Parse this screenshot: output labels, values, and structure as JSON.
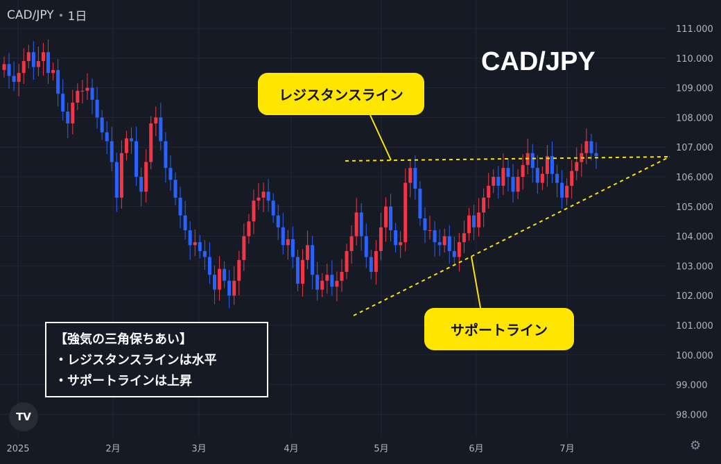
{
  "header": {
    "symbol": "CAD/JPY",
    "interval": "1日"
  },
  "overlay": {
    "title": "CAD/JPY",
    "resistance_label": "レジスタンスライン",
    "support_label": "サポートライン",
    "info_lines": [
      "【強気の三角保ちあい】",
      "・レジスタンスラインは水平",
      "・サポートラインは上昇"
    ]
  },
  "icons": {
    "logo": "tradingview-logo-icon",
    "settings": "gear-icon"
  },
  "colors": {
    "background": "#161a25",
    "up": "#f23645",
    "down": "#2962ff",
    "annotation": "#ffe600"
  },
  "chart_data": {
    "type": "candlestick",
    "title": "CAD/JPY",
    "ylim": [
      97.5,
      111.3
    ],
    "yticks": [
      "111.000",
      "110.000",
      "109.000",
      "108.000",
      "107.000",
      "106.000",
      "105.000",
      "104.000",
      "103.000",
      "102.000",
      "101.000",
      "100.000",
      "99.000",
      "98.000"
    ],
    "xticks": [
      "2025",
      "2月",
      "3月",
      "4月",
      "5月",
      "6月",
      "7月"
    ],
    "series": [
      {
        "open": [
          109.6,
          109.8,
          109.4,
          109.2,
          109.5,
          109.9,
          110.2,
          109.7,
          109.9,
          110.2,
          109.5,
          109.6,
          108.8,
          108.2,
          107.8,
          108.5,
          108.9,
          108.9,
          109.0,
          108.6,
          108.0,
          107.5,
          107.2,
          106.5,
          105.3,
          106.8,
          107.3,
          107.2,
          106.0,
          105.5,
          106.5,
          107.8,
          108.0,
          107.2,
          106.3,
          105.9,
          105.3,
          104.7,
          104.2,
          103.7,
          103.8,
          103.5,
          103.3,
          102.7,
          102.2,
          102.9,
          102.5,
          102.0,
          102.5,
          103.2,
          104.0,
          104.5,
          105.2,
          105.3,
          105.5,
          105.2,
          104.7,
          104.3,
          103.7,
          103.9,
          103.3,
          102.4,
          103.2,
          103.7,
          102.7,
          102.2,
          102.5,
          102.7,
          102.3,
          102.5,
          102.8,
          103.5,
          104.0,
          104.8,
          104.0,
          103.3,
          102.8,
          103.5,
          104.3,
          105.0,
          104.2,
          103.7,
          103.8,
          105.8,
          106.3,
          105.6,
          104.6,
          104.2,
          104.2,
          103.8,
          103.7,
          104.0,
          103.5,
          103.3,
          103.8,
          104.1,
          104.7,
          104.3,
          104.8,
          105.3,
          105.7,
          106.0,
          105.7,
          106.3,
          106.0,
          105.5,
          106.0,
          106.4,
          106.8,
          106.3,
          105.8,
          106.1,
          106.7,
          106.1,
          105.8,
          105.3,
          105.7,
          106.2,
          106.5,
          106.8,
          107.2,
          106.8
        ],
        "close": [
          109.8,
          109.4,
          109.2,
          109.5,
          109.9,
          110.2,
          109.7,
          109.9,
          110.2,
          109.5,
          109.6,
          108.8,
          108.2,
          107.8,
          108.5,
          108.9,
          108.9,
          109.0,
          108.6,
          108.0,
          107.5,
          107.2,
          106.5,
          105.3,
          106.8,
          107.3,
          107.2,
          106.0,
          105.5,
          106.5,
          107.8,
          108.0,
          107.2,
          106.3,
          105.9,
          105.3,
          104.7,
          104.2,
          103.7,
          103.8,
          103.5,
          103.3,
          102.7,
          102.2,
          102.9,
          102.5,
          102.0,
          102.5,
          103.2,
          104.0,
          104.5,
          105.2,
          105.3,
          105.5,
          105.2,
          104.7,
          104.3,
          103.7,
          103.9,
          103.3,
          102.4,
          103.2,
          103.7,
          102.7,
          102.2,
          102.5,
          102.7,
          102.3,
          102.5,
          102.8,
          103.5,
          104.0,
          104.8,
          104.0,
          103.3,
          102.8,
          103.5,
          104.3,
          105.0,
          104.2,
          103.7,
          103.8,
          105.8,
          106.3,
          105.6,
          104.6,
          104.2,
          104.2,
          103.8,
          103.7,
          104.0,
          103.5,
          103.3,
          103.8,
          104.1,
          104.7,
          104.3,
          104.8,
          105.3,
          105.7,
          106.0,
          105.7,
          106.3,
          106.0,
          105.5,
          106.0,
          106.4,
          106.8,
          106.3,
          105.8,
          106.1,
          106.7,
          106.1,
          105.8,
          105.3,
          105.7,
          106.2,
          106.5,
          106.8,
          107.2,
          106.8,
          106.7
        ]
      }
    ],
    "resistance_line": {
      "from": [
        0,
        106.65
      ],
      "to": [
        999,
        106.65
      ]
    },
    "support_line": {
      "from": [
        0,
        101.35
      ],
      "to": [
        999,
        106.65
      ]
    }
  }
}
